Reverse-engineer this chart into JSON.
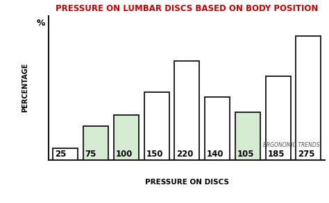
{
  "title": "PRESSURE ON LUMBAR DISCS BASED ON BODY POSITION",
  "title_color": "#cc0000",
  "xlabel": "PRESSURE ON DISCS",
  "ylabel": "PERCENTAGE",
  "percent_label": "%",
  "values": [
    25,
    75,
    100,
    150,
    220,
    140,
    105,
    185,
    275
  ],
  "bar_colors": [
    "#ffffff",
    "#d6ecd2",
    "#d6ecd2",
    "#ffffff",
    "#ffffff",
    "#ffffff",
    "#d6ecd2",
    "#ffffff",
    "#ffffff"
  ],
  "bar_edge_color": "#111111",
  "bar_width": 0.82,
  "ylim": [
    0,
    320
  ],
  "value_color": "#000000",
  "watermark": "ERGONOMIC TRENDS",
  "watermark_color": "#555555",
  "background_color": "#ffffff",
  "title_fontsize": 8.5,
  "label_fontsize": 8.5,
  "axis_label_fontsize": 7.0,
  "percent_fontsize": 9.0,
  "watermark_fontsize": 5.5
}
